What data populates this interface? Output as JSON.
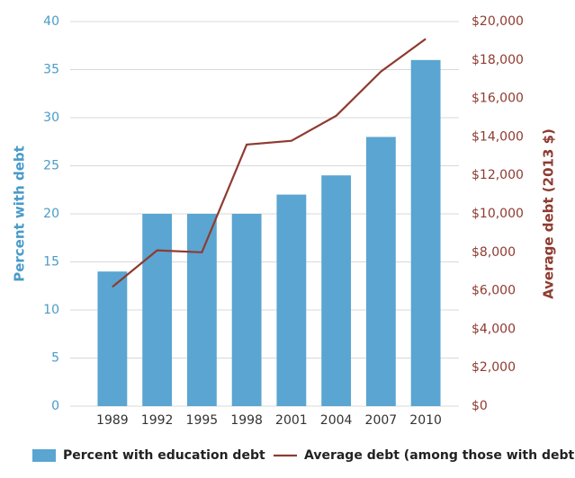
{
  "chart_data": {
    "type": "bar",
    "categories": [
      "1989",
      "1992",
      "1995",
      "1998",
      "2001",
      "2004",
      "2007",
      "2010"
    ],
    "series": [
      {
        "name": "Percent with education debt",
        "type": "bar",
        "color": "#5aa5d1",
        "values": [
          14,
          20,
          20,
          20,
          22,
          24,
          28,
          36
        ]
      },
      {
        "name": "Average debt (among those with debt)",
        "type": "line",
        "axis": "y2",
        "color": "#8e3b30",
        "values": [
          6200,
          8100,
          8000,
          13600,
          13800,
          15100,
          17400,
          19100
        ]
      }
    ],
    "ylabel": "Percent with debt",
    "y2label": "Average debt (2013 $)",
    "ylim": [
      0,
      40
    ],
    "yticks": [
      0,
      5,
      10,
      15,
      20,
      25,
      30,
      35,
      40
    ],
    "y2lim": [
      0,
      20000
    ],
    "y2ticks": [
      {
        "value": 0,
        "label": "$0"
      },
      {
        "value": 2000,
        "label": "$2,000"
      },
      {
        "value": 4000,
        "label": "$4,000"
      },
      {
        "value": 6000,
        "label": "$6,000"
      },
      {
        "value": 8000,
        "label": "$8,000"
      },
      {
        "value": 10000,
        "label": "$10,000"
      },
      {
        "value": 12000,
        "label": "$12,000"
      },
      {
        "value": 14000,
        "label": "$14,000"
      },
      {
        "value": 16000,
        "label": "$16,000"
      },
      {
        "value": 18000,
        "label": "$18,000"
      },
      {
        "value": 20000,
        "label": "$20,000"
      }
    ],
    "grid": true,
    "legend": "bottom"
  }
}
